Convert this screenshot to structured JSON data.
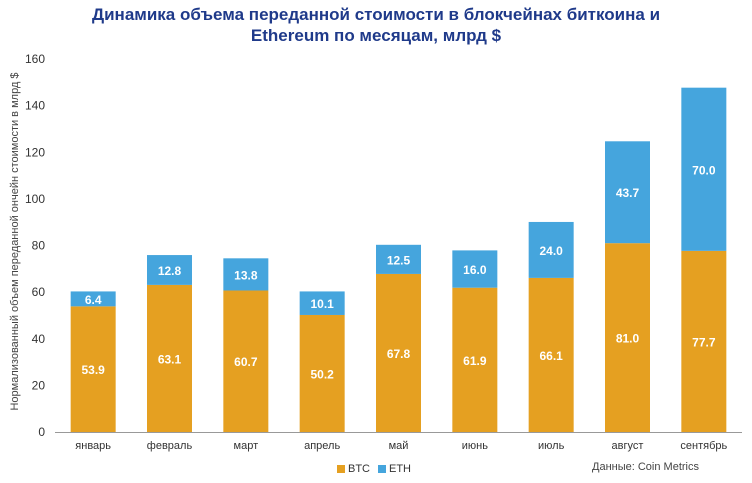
{
  "title_line1": "Динамика объема переданной стоимости в блокчейнах биткоина и",
  "title_line2": "Ethereum по месяцам, млрд $",
  "source": "Данные: Coin Metrics",
  "colors": {
    "btc": "#E5A021",
    "eth": "#45A5DD",
    "axis": "#999999",
    "label": "#333333"
  },
  "chart_data": {
    "type": "bar",
    "stacked": true,
    "title": "Динамика объема переданной стоимости в блокчейнах биткоина и Ethereum по месяцам, млрд $",
    "xlabel": "",
    "ylabel": "Нормализованный объем переданной ончейн стоимости в млрд $",
    "ylim": [
      0,
      160
    ],
    "yticks": [
      0,
      20,
      40,
      60,
      80,
      100,
      120,
      140,
      160
    ],
    "categories": [
      "январь",
      "февраль",
      "март",
      "апрель",
      "май",
      "июнь",
      "июль",
      "август",
      "сентябрь"
    ],
    "series": [
      {
        "name": "BTC",
        "values": [
          53.9,
          63.1,
          60.7,
          50.2,
          67.8,
          61.9,
          66.1,
          81.0,
          77.7
        ],
        "labels": [
          "53.9",
          "63.1",
          "60.7",
          "50.2",
          "67.8",
          "61.9",
          "66.1",
          "81.0",
          "77.7"
        ]
      },
      {
        "name": "ETH",
        "values": [
          6.4,
          12.8,
          13.8,
          10.1,
          12.5,
          16.0,
          24.0,
          43.7,
          70.0
        ],
        "labels": [
          "6.4",
          "12.8",
          "13.8",
          "10.1",
          "12.5",
          "16.0",
          "24.0",
          "43.7",
          "70.0"
        ]
      }
    ],
    "legend": "bottom-center"
  }
}
